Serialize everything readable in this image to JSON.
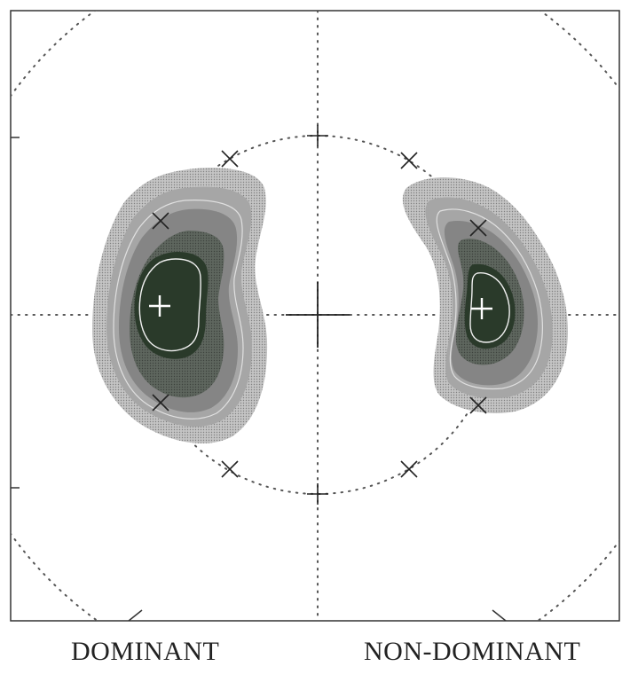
{
  "labels": {
    "left": "DOMINANT",
    "right": "NON-DOMINANT"
  },
  "colors": {
    "frame": "#333333",
    "dots": "#555555",
    "contour_outer": "#c4c4c4",
    "contour_2": "#a6a6a6",
    "contour_3": "#858585",
    "contour_4": "#5e665e",
    "contour_core": "#2a3a2a",
    "isoline": "#f0f0f0",
    "centroid": "#ffffff"
  },
  "contour_levels": 6
}
